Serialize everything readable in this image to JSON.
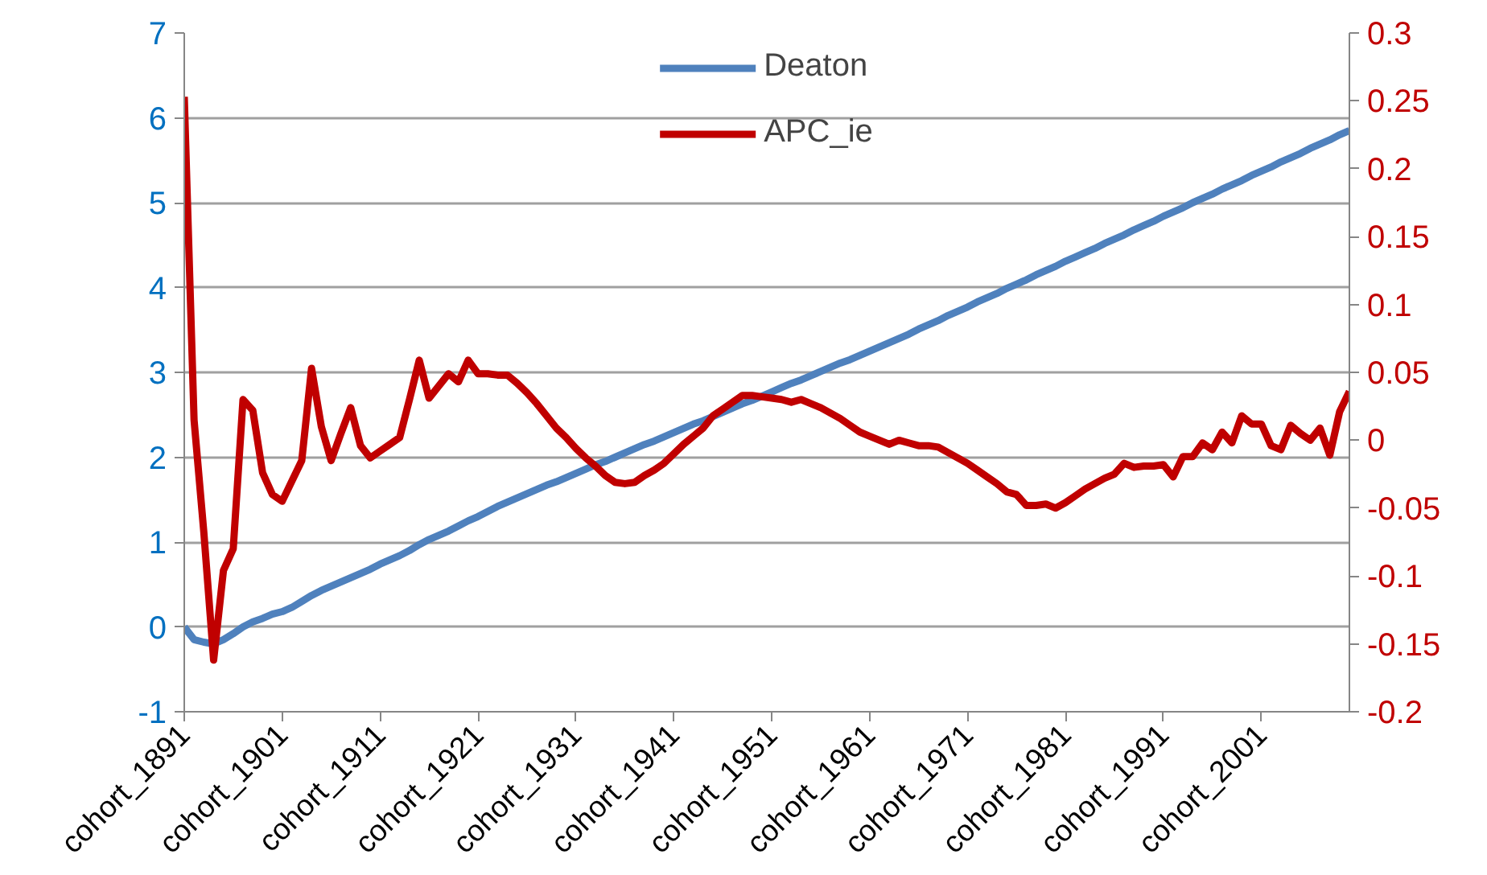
{
  "chart_data": {
    "type": "line",
    "categories": [
      "cohort_1891",
      null,
      null,
      null,
      null,
      null,
      null,
      null,
      null,
      null,
      "cohort_1901",
      null,
      null,
      null,
      null,
      null,
      null,
      null,
      null,
      null,
      "cohort_1911",
      null,
      null,
      null,
      null,
      null,
      null,
      null,
      null,
      null,
      "cohort_1921",
      null,
      null,
      null,
      null,
      null,
      null,
      null,
      null,
      null,
      "cohort_1931",
      null,
      null,
      null,
      null,
      null,
      null,
      null,
      null,
      null,
      "cohort_1941",
      null,
      null,
      null,
      null,
      null,
      null,
      null,
      null,
      null,
      "cohort_1951",
      null,
      null,
      null,
      null,
      null,
      null,
      null,
      null,
      null,
      "cohort_1961",
      null,
      null,
      null,
      null,
      null,
      null,
      null,
      null,
      null,
      "cohort_1971",
      null,
      null,
      null,
      null,
      null,
      null,
      null,
      null,
      null,
      "cohort_1981",
      null,
      null,
      null,
      null,
      null,
      null,
      null,
      null,
      null,
      "cohort_1991",
      null,
      null,
      null,
      null,
      null,
      null,
      null,
      null,
      null,
      "cohort_2001",
      null,
      null,
      null,
      null,
      null,
      null,
      null,
      null,
      null
    ],
    "series": [
      {
        "name": "Deaton",
        "color": "#4f81bd",
        "values": [
          0,
          -0.15,
          -0.18,
          -0.2,
          -0.15,
          -0.08,
          0.0,
          0.06,
          0.1,
          0.15,
          0.18,
          0.23,
          0.3,
          0.37,
          0.43,
          0.48,
          0.53,
          0.58,
          0.63,
          0.68,
          0.74,
          0.79,
          0.84,
          0.9,
          0.97,
          1.03,
          1.08,
          1.13,
          1.19,
          1.25,
          1.3,
          1.36,
          1.42,
          1.47,
          1.52,
          1.57,
          1.62,
          1.67,
          1.71,
          1.76,
          1.81,
          1.86,
          1.91,
          1.95,
          2.0,
          2.05,
          2.1,
          2.15,
          2.19,
          2.24,
          2.29,
          2.34,
          2.39,
          2.43,
          2.48,
          2.53,
          2.58,
          2.63,
          2.67,
          2.72,
          2.77,
          2.82,
          2.87,
          2.91,
          2.96,
          3.01,
          3.06,
          3.11,
          3.15,
          3.2,
          3.25,
          3.3,
          3.35,
          3.4,
          3.45,
          3.51,
          3.56,
          3.61,
          3.67,
          3.72,
          3.77,
          3.83,
          3.88,
          3.93,
          3.99,
          4.04,
          4.09,
          4.15,
          4.2,
          4.25,
          4.31,
          4.36,
          4.41,
          4.46,
          4.52,
          4.57,
          4.62,
          4.68,
          4.73,
          4.78,
          4.84,
          4.89,
          4.94,
          5.0,
          5.05,
          5.1,
          5.16,
          5.21,
          5.26,
          5.32,
          5.37,
          5.42,
          5.48,
          5.53,
          5.58,
          5.64,
          5.69,
          5.74,
          5.8,
          5.85
        ]
      },
      {
        "name": "APC_ie",
        "color": "#c00000",
        "axis": "y2",
        "values": [
          0.253,
          0.015,
          -0.068,
          -0.162,
          -0.096,
          -0.08,
          0.03,
          0.022,
          -0.024,
          -0.04,
          -0.045,
          -0.03,
          -0.015,
          0.053,
          0.01,
          -0.015,
          0.005,
          0.024,
          -0.004,
          -0.013,
          -0.008,
          -0.003,
          0.002,
          0.03,
          0.059,
          0.031,
          0.04,
          0.049,
          0.043,
          0.059,
          0.049,
          0.049,
          0.048,
          0.048,
          0.042,
          0.035,
          0.027,
          0.018,
          0.009,
          0.002,
          -0.006,
          -0.013,
          -0.019,
          -0.026,
          -0.031,
          -0.032,
          -0.031,
          -0.026,
          -0.022,
          -0.017,
          -0.01,
          -0.003,
          0.003,
          0.009,
          0.018,
          0.023,
          0.028,
          0.033,
          0.033,
          0.032,
          0.031,
          0.03,
          0.028,
          0.03,
          0.027,
          0.024,
          0.02,
          0.016,
          0.011,
          0.006,
          0.003,
          0.0,
          -0.003,
          0.0,
          -0.002,
          -0.004,
          -0.004,
          -0.005,
          -0.009,
          -0.013,
          -0.017,
          -0.022,
          -0.027,
          -0.032,
          -0.038,
          -0.04,
          -0.048,
          -0.048,
          -0.047,
          -0.05,
          -0.046,
          -0.041,
          -0.036,
          -0.032,
          -0.028,
          -0.025,
          -0.017,
          -0.02,
          -0.019,
          -0.019,
          -0.018,
          -0.027,
          -0.012,
          -0.012,
          -0.002,
          -0.007,
          0.006,
          -0.002,
          0.018,
          0.012,
          0.012,
          -0.004,
          -0.007,
          0.011,
          0.005,
          0.0,
          0.009,
          -0.011,
          0.021,
          0.036
        ]
      }
    ],
    "ylim": [
      -1,
      7
    ],
    "yticks": [
      -1,
      0,
      1,
      2,
      3,
      4,
      5,
      6,
      7
    ],
    "y2lim": [
      -0.2,
      0.3
    ],
    "y2ticks": [
      -0.2,
      -0.15,
      -0.1,
      -0.05,
      0,
      0.05,
      0.1,
      0.15,
      0.2,
      0.25,
      0.3
    ],
    "grid": "y",
    "legend": "top",
    "marker": "none",
    "line_style": "solid"
  }
}
